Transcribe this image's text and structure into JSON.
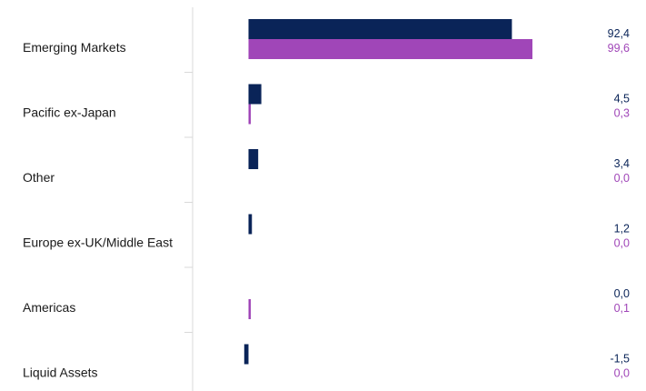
{
  "chart_data": {
    "type": "bar",
    "orientation": "horizontal",
    "categories": [
      "Emerging Markets",
      "Pacific ex-Japan",
      "Other",
      "Europe ex-UK/Middle East",
      "Americas",
      "Liquid Assets"
    ],
    "series": [
      {
        "values": [
          92.4,
          4.5,
          3.4,
          1.2,
          0.0,
          -1.5
        ],
        "labels": [
          "92,4",
          "4,5",
          "3,4",
          "1,2",
          "0,0",
          "-1,5"
        ],
        "color": "#0a2458"
      },
      {
        "values": [
          99.6,
          0.3,
          0.0,
          0.0,
          0.1,
          0.0
        ],
        "labels": [
          "99,6",
          "0,3",
          "0,0",
          "0,0",
          "0,1",
          "0,0"
        ],
        "color": "#a046b8"
      }
    ],
    "xlim": [
      -1.5,
      100
    ],
    "grid": false,
    "legend": "none"
  }
}
